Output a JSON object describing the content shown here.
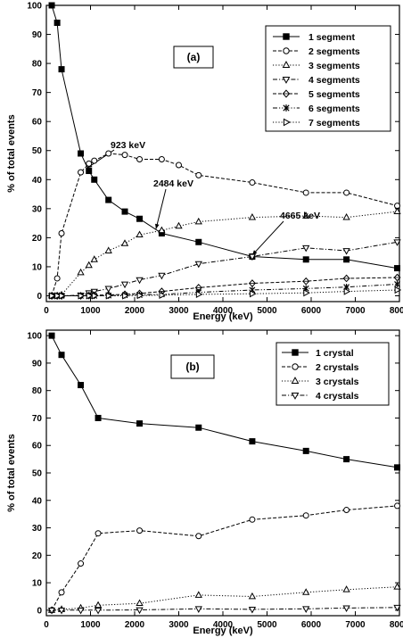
{
  "chart_data": [
    {
      "type": "line",
      "panel_label": "(a)",
      "xlabel": "Energy (keV)",
      "ylabel": "% of total events",
      "xlim": [
        0,
        8000
      ],
      "ylim": [
        -2,
        100
      ],
      "xticks": [
        0,
        1000,
        2000,
        3000,
        4000,
        5000,
        6000,
        7000,
        8000
      ],
      "yticks": [
        0,
        10,
        20,
        30,
        40,
        50,
        60,
        70,
        80,
        90,
        100
      ],
      "grid": false,
      "legend_position": "top-right",
      "series": [
        {
          "name": "1 segment",
          "marker": "filled-square",
          "dash": "solid",
          "x": [
            122,
            245,
            344,
            779,
            964,
            1086,
            1408,
            1778,
            2112,
            2614,
            3450,
            4665,
            5883,
            6800,
            7950
          ],
          "y": [
            100,
            94,
            78,
            49,
            43,
            40,
            33,
            29,
            26.5,
            21.5,
            18.5,
            13.5,
            12.5,
            12.5,
            9.5
          ]
        },
        {
          "name": "2 segments",
          "marker": "open-circle",
          "dash": "dash",
          "x": [
            122,
            245,
            344,
            779,
            964,
            1086,
            1408,
            1778,
            2112,
            2614,
            3000,
            3450,
            4665,
            5883,
            6800,
            7950
          ],
          "y": [
            0,
            6,
            21.5,
            42.5,
            45.5,
            46.5,
            49,
            48.5,
            47,
            47,
            45,
            41.5,
            39,
            35.5,
            35.5,
            31
          ]
        },
        {
          "name": "3 segments",
          "marker": "open-triangle-up",
          "dash": "dot",
          "x": [
            122,
            245,
            344,
            779,
            964,
            1086,
            1408,
            1778,
            2112,
            2614,
            3000,
            3450,
            4665,
            5883,
            6800,
            7950
          ],
          "y": [
            0,
            0,
            0.3,
            8,
            10.5,
            12.5,
            15.5,
            18,
            21,
            22.5,
            24,
            25.5,
            27,
            27.5,
            27,
            29
          ]
        },
        {
          "name": "4 segments",
          "marker": "open-triangle-down",
          "dash": "dashdot",
          "x": [
            122,
            245,
            344,
            779,
            964,
            1086,
            1408,
            1778,
            2112,
            2614,
            3450,
            4665,
            5883,
            6800,
            7950
          ],
          "y": [
            0,
            0,
            0,
            0.2,
            1,
            1.5,
            2.5,
            4,
            5.5,
            7,
            11,
            13.5,
            16.5,
            15.5,
            18.5
          ]
        },
        {
          "name": "5 segments",
          "marker": "open-diamond",
          "dash": "dash",
          "x": [
            122,
            245,
            344,
            779,
            964,
            1086,
            1408,
            1778,
            2112,
            2614,
            3450,
            4665,
            5883,
            6800,
            7950
          ],
          "y": [
            0,
            0,
            0,
            0,
            0.1,
            0.2,
            0.3,
            0.5,
            0.8,
            1.5,
            2.8,
            4.3,
            5,
            6,
            6.3
          ]
        },
        {
          "name": "6 segments",
          "marker": "star",
          "dash": "dashdotdot",
          "x": [
            122,
            245,
            344,
            779,
            964,
            1086,
            1408,
            1778,
            2112,
            2614,
            3450,
            4665,
            5883,
            6800,
            7950
          ],
          "y": [
            0,
            0,
            0,
            0,
            0,
            0,
            0.1,
            0.2,
            0.3,
            0.5,
            1.2,
            2,
            2.5,
            3,
            4
          ]
        },
        {
          "name": "7 segments",
          "marker": "open-triangle-right",
          "dash": "dot",
          "x": [
            122,
            245,
            344,
            779,
            964,
            1086,
            1408,
            1778,
            2112,
            2614,
            3450,
            4665,
            5883,
            6800,
            7950
          ],
          "y": [
            0,
            0,
            0,
            0,
            0,
            0,
            0,
            0,
            0.1,
            0.2,
            0.5,
            0.7,
            1,
            1.5,
            2
          ]
        }
      ],
      "annotations": [
        {
          "text": "923 keV",
          "x": 923,
          "y": 44
        },
        {
          "text": "2484 keV",
          "x": 2484,
          "y": 23
        },
        {
          "text": "4665 keV",
          "x": 4665,
          "y": 14
        }
      ]
    },
    {
      "type": "line",
      "panel_label": "(b)",
      "xlabel": "Energy (keV)",
      "ylabel": "% of total events",
      "xlim": [
        0,
        8000
      ],
      "ylim": [
        -2,
        102
      ],
      "xticks": [
        0,
        1000,
        2000,
        3000,
        4000,
        5000,
        6000,
        7000,
        8000
      ],
      "yticks": [
        0,
        10,
        20,
        30,
        40,
        50,
        60,
        70,
        80,
        90,
        100
      ],
      "grid": false,
      "legend_position": "top-right",
      "series": [
        {
          "name": "1 crystal",
          "marker": "filled-square",
          "dash": "solid",
          "x": [
            122,
            344,
            779,
            1173,
            2112,
            3450,
            4665,
            5883,
            6800,
            7950
          ],
          "y": [
            100,
            93,
            82,
            70,
            68,
            66.5,
            61.5,
            58,
            55,
            52
          ]
        },
        {
          "name": "2 crystals",
          "marker": "open-circle",
          "dash": "dash",
          "x": [
            122,
            344,
            779,
            1173,
            2112,
            3450,
            4665,
            5883,
            6800,
            7950
          ],
          "y": [
            0,
            6.5,
            17,
            28,
            29,
            27,
            33,
            34.5,
            36.5,
            38
          ]
        },
        {
          "name": "3 crystals",
          "marker": "open-triangle-up",
          "dash": "dot",
          "x": [
            122,
            344,
            779,
            1173,
            2112,
            3450,
            4665,
            5883,
            6800,
            7950
          ],
          "y": [
            0,
            0.3,
            0.8,
            1.8,
            2.5,
            5.5,
            5,
            6.5,
            7.5,
            8.5
          ]
        },
        {
          "name": "4 crystals",
          "marker": "open-triangle-down",
          "dash": "dashdot",
          "x": [
            122,
            344,
            779,
            1173,
            2112,
            3450,
            4665,
            5883,
            6800,
            7950
          ],
          "y": [
            0,
            0,
            0,
            0,
            0.1,
            0.5,
            0.3,
            0.5,
            0.8,
            1
          ]
        }
      ]
    }
  ]
}
